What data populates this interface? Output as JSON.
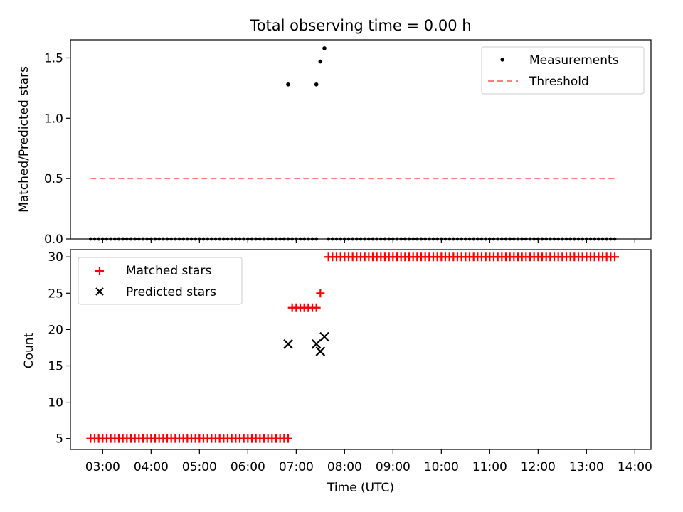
{
  "chart_data": [
    {
      "type": "scatter",
      "title": "Total observing time = 0.00 h",
      "xlabel": "",
      "ylabel": "Matched/Predicted stars",
      "ylim": [
        0,
        1.65
      ],
      "yticks": [
        "0.0",
        "0.5",
        "1.0",
        "1.5"
      ],
      "xlim": [
        "02:20",
        "14:20"
      ],
      "legend": {
        "placement": "top-right",
        "entries": [
          "Measurements",
          "Threshold"
        ]
      },
      "colors": {
        "measurements": "#000000",
        "threshold": "#ff7f7f"
      },
      "threshold": {
        "name": "Threshold",
        "y": 0.5,
        "x_start": "02:45",
        "x_end": "13:35"
      },
      "series": [
        {
          "name": "Measurements",
          "points": [
            {
              "x": "06:50",
              "y": 1.28
            },
            {
              "x": "07:25",
              "y": 1.28
            },
            {
              "x": "07:30",
              "y": 1.47
            },
            {
              "x": "07:35",
              "y": 1.58
            }
          ],
          "zero_segments": [
            [
              "02:45",
              "06:50"
            ],
            [
              "06:55",
              "07:25"
            ],
            [
              "07:40",
              "13:35"
            ]
          ]
        }
      ]
    },
    {
      "type": "scatter",
      "xlabel": "Time (UTC)",
      "ylabel": "Count",
      "ylim": [
        3.5,
        31
      ],
      "yticks": [
        "5",
        "10",
        "15",
        "20",
        "25",
        "30"
      ],
      "xlim": [
        "02:20",
        "14:20"
      ],
      "xticks": [
        "03:00",
        "04:00",
        "05:00",
        "06:00",
        "07:00",
        "08:00",
        "09:00",
        "10:00",
        "11:00",
        "12:00",
        "13:00",
        "14:00"
      ],
      "legend": {
        "placement": "top-left",
        "entries": [
          "Matched stars",
          "Predicted stars"
        ]
      },
      "colors": {
        "matched": "#ff0000",
        "predicted": "#000000"
      },
      "series": [
        {
          "name": "Matched stars",
          "segments": [
            {
              "from": "02:45",
              "to": "06:50",
              "value": 5
            },
            {
              "from": "06:55",
              "to": "07:25",
              "value": 23
            },
            {
              "from": "07:40",
              "to": "13:35",
              "value": 30
            }
          ],
          "points": [
            {
              "x": "07:30",
              "y": 25
            }
          ]
        },
        {
          "name": "Predicted stars",
          "points": [
            {
              "x": "06:50",
              "y": 18
            },
            {
              "x": "07:25",
              "y": 18
            },
            {
              "x": "07:30",
              "y": 17
            },
            {
              "x": "07:35",
              "y": 19
            }
          ]
        }
      ]
    }
  ]
}
